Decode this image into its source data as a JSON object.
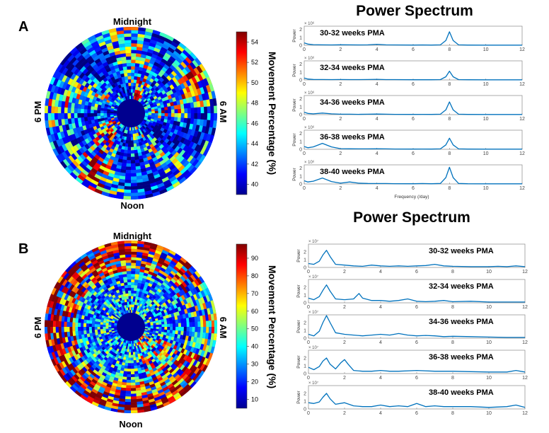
{
  "panels": [
    {
      "label": "A",
      "clock": {
        "top": "Midnight",
        "bottom": "Noon",
        "left": "6 PM",
        "right": "6 AM"
      },
      "colorbar": {
        "label": "Movement Percentage (%)",
        "ticks": [
          "54",
          "52",
          "50",
          "48",
          "46",
          "44",
          "42",
          "40"
        ],
        "range": [
          39,
          55
        ]
      },
      "spectrum_title": "Power Spectrum",
      "spectrum_xlabel": "Frequency (/day)",
      "exponent": "× 10⁶"
    },
    {
      "label": "B",
      "clock": {
        "top": "Midnight",
        "bottom": "Noon",
        "left": "6 PM",
        "right": "6 AM"
      },
      "colorbar": {
        "label": "Movement Percentage (%)",
        "ticks": [
          "90",
          "80",
          "70",
          "60",
          "50",
          "40",
          "30",
          "20",
          "10"
        ],
        "range": [
          5,
          98
        ]
      },
      "spectrum_title": "Power Spectrum",
      "spectrum_xlabel": "",
      "exponent": "× 10⁷"
    }
  ],
  "chart_data": [
    {
      "type": "line",
      "title": "Power Spectrum",
      "xlabel": "Frequency (/day)",
      "ylabel": "Power",
      "xlim": [
        0,
        12
      ],
      "ylim": [
        0,
        2.4
      ],
      "xticks": [
        "0",
        "2",
        "4",
        "6",
        "8",
        "10",
        "12"
      ],
      "yticks": [
        "0",
        "1",
        "2"
      ],
      "series": [
        {
          "name": "30-32 weeks PMA",
          "x": [
            0,
            0.2,
            0.5,
            1,
            1.5,
            2,
            2.5,
            3,
            3.5,
            4,
            4.5,
            5,
            6,
            6.5,
            7,
            7.5,
            7.8,
            8,
            8.2,
            8.5,
            9,
            10,
            11,
            12
          ],
          "values": [
            0.3,
            0.15,
            0.08,
            0.05,
            0.04,
            0.06,
            0.05,
            0.04,
            0.05,
            0.12,
            0.05,
            0.04,
            0.03,
            0.04,
            0.03,
            0.05,
            0.6,
            1.7,
            0.6,
            0.05,
            0.03,
            0.02,
            0.02,
            0.02
          ]
        },
        {
          "name": "32-34 weeks PMA",
          "x": [
            0,
            0.2,
            0.5,
            1,
            1.5,
            2,
            2.5,
            3,
            3.5,
            4,
            4.5,
            5,
            6,
            6.5,
            7,
            7.5,
            7.8,
            8,
            8.2,
            8.5,
            9,
            10,
            11,
            12
          ],
          "values": [
            0.25,
            0.12,
            0.06,
            0.05,
            0.04,
            0.05,
            0.04,
            0.04,
            0.05,
            0.08,
            0.04,
            0.04,
            0.03,
            0.03,
            0.03,
            0.04,
            0.4,
            1.1,
            0.4,
            0.04,
            0.03,
            0.02,
            0.02,
            0.02
          ]
        },
        {
          "name": "34-36 weeks PMA",
          "x": [
            0,
            0.2,
            0.5,
            1,
            1.5,
            2,
            2.5,
            3,
            3.5,
            4,
            4.5,
            5,
            6,
            6.5,
            7,
            7.5,
            7.8,
            8,
            8.2,
            8.5,
            9,
            10,
            11,
            12
          ],
          "values": [
            0.3,
            0.15,
            0.1,
            0.2,
            0.1,
            0.05,
            0.05,
            0.04,
            0.05,
            0.07,
            0.05,
            0.04,
            0.03,
            0.04,
            0.03,
            0.05,
            0.6,
            1.6,
            0.6,
            0.05,
            0.03,
            0.02,
            0.02,
            0.02
          ]
        },
        {
          "name": "36-38 weeks PMA",
          "x": [
            0,
            0.2,
            0.5,
            1,
            1.5,
            2,
            2.5,
            3,
            3.5,
            4,
            4.5,
            5,
            6,
            6.5,
            7,
            7.5,
            7.8,
            8,
            8.2,
            8.5,
            9,
            10,
            11,
            12
          ],
          "values": [
            0.35,
            0.2,
            0.3,
            0.75,
            0.3,
            0.08,
            0.06,
            0.05,
            0.05,
            0.06,
            0.05,
            0.04,
            0.03,
            0.04,
            0.03,
            0.05,
            0.55,
            1.4,
            0.55,
            0.05,
            0.03,
            0.02,
            0.02,
            0.02
          ]
        },
        {
          "name": "38-40 weeks PMA",
          "x": [
            0,
            0.2,
            0.5,
            1,
            1.5,
            2,
            2.5,
            3,
            3.5,
            4,
            4.5,
            5,
            6,
            6.5,
            7,
            7.5,
            7.8,
            8,
            8.2,
            8.5,
            9,
            10,
            11,
            12
          ],
          "values": [
            0.4,
            0.25,
            0.35,
            0.75,
            0.3,
            0.1,
            0.25,
            0.1,
            0.06,
            0.05,
            0.05,
            0.04,
            0.03,
            0.05,
            0.03,
            0.06,
            0.8,
            2.1,
            0.8,
            0.06,
            0.03,
            0.02,
            0.02,
            0.02
          ]
        }
      ]
    },
    {
      "type": "line",
      "title": "Power Spectrum",
      "xlabel": "",
      "ylabel": "Power",
      "xlim": [
        0,
        12
      ],
      "ylim": [
        0,
        3
      ],
      "xticks": [
        "0",
        "2",
        "4",
        "6",
        "8",
        "10",
        "12"
      ],
      "yticks": [
        "0",
        "1",
        "2"
      ],
      "series": [
        {
          "name": "30-32 weeks PMA",
          "x": [
            0,
            0.3,
            0.6,
            0.8,
            1,
            1.2,
            1.5,
            2,
            2.5,
            3,
            3.5,
            4,
            4.5,
            5,
            5.5,
            6,
            6.5,
            7,
            7.5,
            8,
            9,
            10,
            10.5,
            11,
            11.5,
            12
          ],
          "values": [
            0.5,
            0.4,
            0.8,
            1.6,
            2.2,
            1.4,
            0.4,
            0.3,
            0.2,
            0.15,
            0.3,
            0.2,
            0.15,
            0.2,
            0.15,
            0.2,
            0.25,
            0.4,
            0.2,
            0.15,
            0.1,
            0.1,
            0.15,
            0.1,
            0.2,
            0.1
          ]
        },
        {
          "name": "32-34 weeks PMA",
          "x": [
            0,
            0.3,
            0.6,
            0.8,
            1,
            1.2,
            1.5,
            2,
            2.5,
            2.8,
            3,
            3.5,
            4,
            4.5,
            5,
            5.5,
            6,
            6.5,
            7,
            7.5,
            8,
            9,
            10,
            11,
            12
          ],
          "values": [
            0.6,
            0.4,
            0.8,
            1.6,
            2.3,
            1.5,
            0.5,
            0.4,
            0.5,
            1.2,
            0.6,
            0.3,
            0.3,
            0.2,
            0.3,
            0.5,
            0.2,
            0.15,
            0.2,
            0.3,
            0.15,
            0.2,
            0.1,
            0.1,
            0.1
          ]
        },
        {
          "name": "34-36 weeks PMA",
          "x": [
            0,
            0.3,
            0.6,
            0.8,
            1,
            1.2,
            1.5,
            2,
            2.5,
            3,
            3.5,
            4,
            4.5,
            5,
            5.5,
            6,
            6.5,
            7,
            7.5,
            8,
            9,
            10,
            11,
            12
          ],
          "values": [
            0.5,
            0.3,
            0.9,
            2,
            2.9,
            2,
            0.7,
            0.5,
            0.4,
            0.3,
            0.4,
            0.5,
            0.4,
            0.6,
            0.4,
            0.3,
            0.35,
            0.3,
            0.2,
            0.25,
            0.2,
            0.15,
            0.1,
            0.1
          ]
        },
        {
          "name": "36-38 weeks PMA",
          "x": [
            0,
            0.3,
            0.6,
            0.8,
            1,
            1.2,
            1.5,
            1.8,
            2,
            2.2,
            2.5,
            3,
            3.5,
            4,
            4.5,
            5,
            6,
            7,
            8,
            9,
            10,
            11,
            11.5,
            12
          ],
          "values": [
            0.8,
            0.5,
            0.9,
            1.6,
            2,
            1.2,
            0.6,
            1.4,
            1.8,
            1.2,
            0.4,
            0.3,
            0.3,
            0.4,
            0.3,
            0.3,
            0.4,
            0.3,
            0.3,
            0.25,
            0.2,
            0.2,
            0.4,
            0.2
          ]
        },
        {
          "name": "38-40 weeks PMA",
          "x": [
            0,
            0.3,
            0.6,
            0.8,
            1,
            1.2,
            1.5,
            2,
            2.5,
            3,
            3.5,
            4,
            4.5,
            5,
            5.5,
            6,
            6.5,
            7,
            7.5,
            8,
            9,
            10,
            11,
            11.5,
            12
          ],
          "values": [
            0.8,
            0.7,
            0.9,
            1.5,
            2,
            1.3,
            0.6,
            0.8,
            0.4,
            0.3,
            0.3,
            0.5,
            0.3,
            0.4,
            0.3,
            0.7,
            0.3,
            0.4,
            0.3,
            0.3,
            0.3,
            0.2,
            0.3,
            0.5,
            0.2
          ]
        }
      ]
    }
  ]
}
